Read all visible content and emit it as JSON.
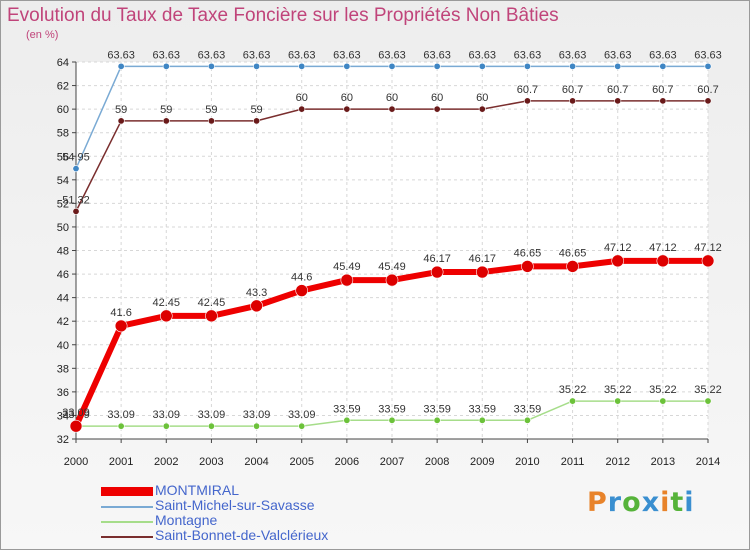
{
  "chart_data": {
    "type": "line",
    "title": "Evolution du Taux de Taxe Foncière sur les Propriétés Non Bâties",
    "ylabel": "(en %)",
    "xlabel": "",
    "ylim": [
      32,
      64
    ],
    "y_ticks": [
      "32",
      "34",
      "36",
      "38",
      "40",
      "42",
      "44",
      "46",
      "48",
      "50",
      "52",
      "54",
      "56",
      "58",
      "60",
      "62",
      "64"
    ],
    "categories": [
      "2000",
      "2001",
      "2002",
      "2003",
      "2004",
      "2005",
      "2006",
      "2007",
      "2008",
      "2009",
      "2010",
      "2011",
      "2012",
      "2013",
      "2014"
    ],
    "series": [
      {
        "name": "MONTMIRAL",
        "color": "#ee0000",
        "dot": "#dd0000",
        "values": [
          33.09,
          41.6,
          42.45,
          42.45,
          43.3,
          44.6,
          45.49,
          45.49,
          46.17,
          46.17,
          46.65,
          46.65,
          47.12,
          47.12,
          47.12
        ],
        "labels": [
          "33.09",
          "41.6",
          "42.45",
          "42.45",
          "43.3",
          "44.6",
          "45.49",
          "45.49",
          "46.17",
          "46.17",
          "46.65",
          "46.65",
          "47.12",
          "47.12",
          "47.12"
        ]
      },
      {
        "name": "Saint-Michel-sur-Savasse",
        "color": "#7aaad4",
        "dot": "#3f86c4",
        "values": [
          54.95,
          63.63,
          63.63,
          63.63,
          63.63,
          63.63,
          63.63,
          63.63,
          63.63,
          63.63,
          63.63,
          63.63,
          63.63,
          63.63,
          63.63
        ],
        "labels": [
          "54.95",
          "63.63",
          "63.63",
          "63.63",
          "63.63",
          "63.63",
          "63.63",
          "63.63",
          "63.63",
          "63.63",
          "63.63",
          "63.63",
          "63.63",
          "63.63",
          "63.63"
        ]
      },
      {
        "name": "Montagne",
        "color": "#a6dd8a",
        "dot": "#6cc23a",
        "values": [
          33.09,
          33.09,
          33.09,
          33.09,
          33.09,
          33.09,
          33.59,
          33.59,
          33.59,
          33.59,
          33.59,
          35.22,
          35.22,
          35.22,
          35.22
        ],
        "labels": [
          "33.09",
          "33.09",
          "33.09",
          "33.09",
          "33.09",
          "33.09",
          "33.59",
          "33.59",
          "33.59",
          "33.59",
          "33.59",
          "35.22",
          "35.22",
          "35.22",
          "35.22"
        ]
      },
      {
        "name": "Saint-Bonnet-de-Valclérieux",
        "color": "#7a2e2e",
        "dot": "#6a1a1a",
        "values": [
          51.32,
          59,
          59,
          59,
          59,
          60,
          60,
          60,
          60,
          60,
          60.7,
          60.7,
          60.7,
          60.7,
          60.7
        ],
        "labels": [
          "51.32",
          "59",
          "59",
          "59",
          "59",
          "60",
          "60",
          "60",
          "60",
          "60",
          "60.7",
          "60.7",
          "60.7",
          "60.7",
          "60.7"
        ]
      }
    ],
    "legend_position": "bottom-left"
  },
  "brand": {
    "text": "Proxiti",
    "colors": [
      "#e8832a",
      "#3a8fd0",
      "#56b33a",
      "#3a8fd0",
      "#e8832a",
      "#56b33a",
      "#3a8fd0"
    ]
  }
}
